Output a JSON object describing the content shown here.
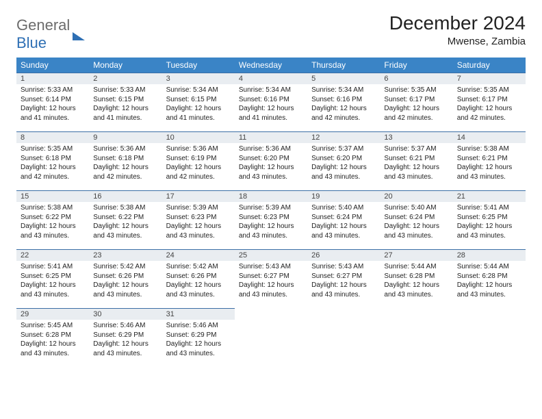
{
  "logo": {
    "text_gray": "General",
    "text_blue": "Blue"
  },
  "title": "December 2024",
  "location": "Mwense, Zambia",
  "columns": [
    "Sunday",
    "Monday",
    "Tuesday",
    "Wednesday",
    "Thursday",
    "Friday",
    "Saturday"
  ],
  "header_bg": "#3a84c6",
  "border_color": "#3a6ea5",
  "daynum_bg": "#e9edf1",
  "weeks": [
    [
      {
        "n": 1,
        "sr": "5:33 AM",
        "ss": "6:14 PM",
        "dl": "12 hours and 41 minutes."
      },
      {
        "n": 2,
        "sr": "5:33 AM",
        "ss": "6:15 PM",
        "dl": "12 hours and 41 minutes."
      },
      {
        "n": 3,
        "sr": "5:34 AM",
        "ss": "6:15 PM",
        "dl": "12 hours and 41 minutes."
      },
      {
        "n": 4,
        "sr": "5:34 AM",
        "ss": "6:16 PM",
        "dl": "12 hours and 41 minutes."
      },
      {
        "n": 5,
        "sr": "5:34 AM",
        "ss": "6:16 PM",
        "dl": "12 hours and 42 minutes."
      },
      {
        "n": 6,
        "sr": "5:35 AM",
        "ss": "6:17 PM",
        "dl": "12 hours and 42 minutes."
      },
      {
        "n": 7,
        "sr": "5:35 AM",
        "ss": "6:17 PM",
        "dl": "12 hours and 42 minutes."
      }
    ],
    [
      {
        "n": 8,
        "sr": "5:35 AM",
        "ss": "6:18 PM",
        "dl": "12 hours and 42 minutes."
      },
      {
        "n": 9,
        "sr": "5:36 AM",
        "ss": "6:18 PM",
        "dl": "12 hours and 42 minutes."
      },
      {
        "n": 10,
        "sr": "5:36 AM",
        "ss": "6:19 PM",
        "dl": "12 hours and 42 minutes."
      },
      {
        "n": 11,
        "sr": "5:36 AM",
        "ss": "6:20 PM",
        "dl": "12 hours and 43 minutes."
      },
      {
        "n": 12,
        "sr": "5:37 AM",
        "ss": "6:20 PM",
        "dl": "12 hours and 43 minutes."
      },
      {
        "n": 13,
        "sr": "5:37 AM",
        "ss": "6:21 PM",
        "dl": "12 hours and 43 minutes."
      },
      {
        "n": 14,
        "sr": "5:38 AM",
        "ss": "6:21 PM",
        "dl": "12 hours and 43 minutes."
      }
    ],
    [
      {
        "n": 15,
        "sr": "5:38 AM",
        "ss": "6:22 PM",
        "dl": "12 hours and 43 minutes."
      },
      {
        "n": 16,
        "sr": "5:38 AM",
        "ss": "6:22 PM",
        "dl": "12 hours and 43 minutes."
      },
      {
        "n": 17,
        "sr": "5:39 AM",
        "ss": "6:23 PM",
        "dl": "12 hours and 43 minutes."
      },
      {
        "n": 18,
        "sr": "5:39 AM",
        "ss": "6:23 PM",
        "dl": "12 hours and 43 minutes."
      },
      {
        "n": 19,
        "sr": "5:40 AM",
        "ss": "6:24 PM",
        "dl": "12 hours and 43 minutes."
      },
      {
        "n": 20,
        "sr": "5:40 AM",
        "ss": "6:24 PM",
        "dl": "12 hours and 43 minutes."
      },
      {
        "n": 21,
        "sr": "5:41 AM",
        "ss": "6:25 PM",
        "dl": "12 hours and 43 minutes."
      }
    ],
    [
      {
        "n": 22,
        "sr": "5:41 AM",
        "ss": "6:25 PM",
        "dl": "12 hours and 43 minutes."
      },
      {
        "n": 23,
        "sr": "5:42 AM",
        "ss": "6:26 PM",
        "dl": "12 hours and 43 minutes."
      },
      {
        "n": 24,
        "sr": "5:42 AM",
        "ss": "6:26 PM",
        "dl": "12 hours and 43 minutes."
      },
      {
        "n": 25,
        "sr": "5:43 AM",
        "ss": "6:27 PM",
        "dl": "12 hours and 43 minutes."
      },
      {
        "n": 26,
        "sr": "5:43 AM",
        "ss": "6:27 PM",
        "dl": "12 hours and 43 minutes."
      },
      {
        "n": 27,
        "sr": "5:44 AM",
        "ss": "6:28 PM",
        "dl": "12 hours and 43 minutes."
      },
      {
        "n": 28,
        "sr": "5:44 AM",
        "ss": "6:28 PM",
        "dl": "12 hours and 43 minutes."
      }
    ],
    [
      {
        "n": 29,
        "sr": "5:45 AM",
        "ss": "6:28 PM",
        "dl": "12 hours and 43 minutes."
      },
      {
        "n": 30,
        "sr": "5:46 AM",
        "ss": "6:29 PM",
        "dl": "12 hours and 43 minutes."
      },
      {
        "n": 31,
        "sr": "5:46 AM",
        "ss": "6:29 PM",
        "dl": "12 hours and 43 minutes."
      },
      null,
      null,
      null,
      null
    ]
  ],
  "labels": {
    "sunrise": "Sunrise:",
    "sunset": "Sunset:",
    "daylight": "Daylight:"
  }
}
